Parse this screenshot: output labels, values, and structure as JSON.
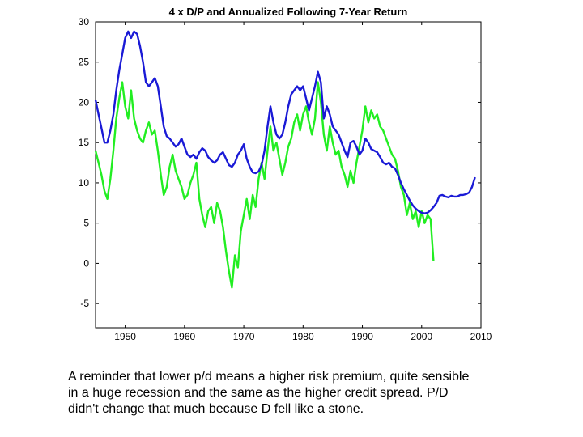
{
  "chart_data": {
    "type": "line",
    "title": "4 x D/P and Annualized Following 7-Year Return",
    "xlabel": "",
    "ylabel": "",
    "xlim": [
      1945,
      2010
    ],
    "ylim": [
      -8,
      30
    ],
    "xticks": [
      1950,
      1960,
      1970,
      1980,
      1990,
      2000,
      2010
    ],
    "yticks": [
      30,
      25,
      20,
      15,
      10,
      5,
      0,
      -5
    ],
    "grid": false,
    "legend": "none",
    "series": [
      {
        "color": "#1a1ad6",
        "points": [
          [
            1945.0,
            20.3
          ],
          [
            1945.5,
            18.5
          ],
          [
            1946.0,
            16.8
          ],
          [
            1946.5,
            15.0
          ],
          [
            1947.0,
            15.0
          ],
          [
            1947.5,
            16.5
          ],
          [
            1948.0,
            18.5
          ],
          [
            1948.5,
            21.5
          ],
          [
            1949.0,
            24.0
          ],
          [
            1949.5,
            26.0
          ],
          [
            1950.0,
            28.0
          ],
          [
            1950.5,
            28.8
          ],
          [
            1951.0,
            28.0
          ],
          [
            1951.5,
            28.8
          ],
          [
            1952.0,
            28.5
          ],
          [
            1952.5,
            27.0
          ],
          [
            1953.0,
            25.0
          ],
          [
            1953.5,
            22.5
          ],
          [
            1954.0,
            22.0
          ],
          [
            1954.5,
            22.5
          ],
          [
            1955.0,
            23.0
          ],
          [
            1955.5,
            22.0
          ],
          [
            1956.0,
            19.5
          ],
          [
            1956.5,
            17.0
          ],
          [
            1957.0,
            15.8
          ],
          [
            1957.5,
            15.5
          ],
          [
            1958.0,
            15.0
          ],
          [
            1958.5,
            14.5
          ],
          [
            1959.0,
            14.8
          ],
          [
            1959.5,
            15.5
          ],
          [
            1960.0,
            14.5
          ],
          [
            1960.5,
            13.5
          ],
          [
            1961.0,
            13.2
          ],
          [
            1961.5,
            13.5
          ],
          [
            1962.0,
            13.0
          ],
          [
            1962.5,
            13.8
          ],
          [
            1963.0,
            14.3
          ],
          [
            1963.5,
            14.0
          ],
          [
            1964.0,
            13.2
          ],
          [
            1964.5,
            12.8
          ],
          [
            1965.0,
            12.5
          ],
          [
            1965.5,
            12.8
          ],
          [
            1966.0,
            13.5
          ],
          [
            1966.5,
            13.8
          ],
          [
            1967.0,
            13.0
          ],
          [
            1967.5,
            12.2
          ],
          [
            1968.0,
            12.0
          ],
          [
            1968.5,
            12.5
          ],
          [
            1969.0,
            13.5
          ],
          [
            1969.5,
            14.0
          ],
          [
            1970.0,
            14.8
          ],
          [
            1970.5,
            13.0
          ],
          [
            1971.0,
            12.0
          ],
          [
            1971.5,
            11.3
          ],
          [
            1972.0,
            11.2
          ],
          [
            1972.5,
            11.4
          ],
          [
            1973.0,
            12.2
          ],
          [
            1973.5,
            14.0
          ],
          [
            1974.0,
            17.0
          ],
          [
            1974.5,
            19.5
          ],
          [
            1975.0,
            17.5
          ],
          [
            1975.5,
            16.0
          ],
          [
            1976.0,
            15.5
          ],
          [
            1976.5,
            16.0
          ],
          [
            1977.0,
            17.5
          ],
          [
            1977.5,
            19.5
          ],
          [
            1978.0,
            21.0
          ],
          [
            1978.5,
            21.5
          ],
          [
            1979.0,
            22.0
          ],
          [
            1979.5,
            21.5
          ],
          [
            1980.0,
            22.0
          ],
          [
            1980.5,
            20.5
          ],
          [
            1981.0,
            19.0
          ],
          [
            1981.5,
            20.5
          ],
          [
            1982.0,
            22.0
          ],
          [
            1982.5,
            23.8
          ],
          [
            1983.0,
            22.5
          ],
          [
            1983.5,
            18.0
          ],
          [
            1984.0,
            19.5
          ],
          [
            1984.5,
            18.5
          ],
          [
            1985.0,
            17.0
          ],
          [
            1985.5,
            16.5
          ],
          [
            1986.0,
            16.0
          ],
          [
            1986.5,
            15.0
          ],
          [
            1987.0,
            14.0
          ],
          [
            1987.5,
            13.2
          ],
          [
            1988.0,
            15.0
          ],
          [
            1988.5,
            15.2
          ],
          [
            1989.0,
            14.5
          ],
          [
            1989.5,
            13.5
          ],
          [
            1990.0,
            14.0
          ],
          [
            1990.5,
            15.5
          ],
          [
            1991.0,
            15.0
          ],
          [
            1991.5,
            14.2
          ],
          [
            1992.0,
            14.0
          ],
          [
            1992.5,
            13.8
          ],
          [
            1993.0,
            13.2
          ],
          [
            1993.5,
            12.5
          ],
          [
            1994.0,
            12.3
          ],
          [
            1994.5,
            12.5
          ],
          [
            1995.0,
            12.0
          ],
          [
            1995.5,
            11.8
          ],
          [
            1996.0,
            11.0
          ],
          [
            1996.5,
            10.0
          ],
          [
            1997.0,
            9.2
          ],
          [
            1997.5,
            8.5
          ],
          [
            1998.0,
            7.8
          ],
          [
            1998.5,
            7.2
          ],
          [
            1999.0,
            6.8
          ],
          [
            1999.5,
            6.5
          ],
          [
            2000.0,
            6.3
          ],
          [
            2000.5,
            6.2
          ],
          [
            2001.0,
            6.3
          ],
          [
            2001.5,
            6.6
          ],
          [
            2002.0,
            7.0
          ],
          [
            2002.5,
            7.5
          ],
          [
            2003.0,
            8.4
          ],
          [
            2003.5,
            8.5
          ],
          [
            2004.0,
            8.3
          ],
          [
            2004.5,
            8.2
          ],
          [
            2005.0,
            8.4
          ],
          [
            2005.5,
            8.3
          ],
          [
            2006.0,
            8.3
          ],
          [
            2006.5,
            8.5
          ],
          [
            2007.0,
            8.5
          ],
          [
            2007.5,
            8.6
          ],
          [
            2008.0,
            8.8
          ],
          [
            2008.5,
            9.5
          ],
          [
            2009.0,
            10.7
          ]
        ]
      },
      {
        "color": "#22ee22",
        "points": [
          [
            1945.0,
            14.0
          ],
          [
            1945.5,
            12.5
          ],
          [
            1946.0,
            11.0
          ],
          [
            1946.5,
            9.0
          ],
          [
            1947.0,
            8.0
          ],
          [
            1947.5,
            10.5
          ],
          [
            1948.0,
            14.0
          ],
          [
            1948.5,
            18.0
          ],
          [
            1949.0,
            20.5
          ],
          [
            1949.5,
            22.5
          ],
          [
            1950.0,
            19.5
          ],
          [
            1950.5,
            18.0
          ],
          [
            1951.0,
            21.5
          ],
          [
            1951.5,
            18.0
          ],
          [
            1952.0,
            16.5
          ],
          [
            1952.5,
            15.5
          ],
          [
            1953.0,
            15.0
          ],
          [
            1953.5,
            16.5
          ],
          [
            1954.0,
            17.5
          ],
          [
            1954.5,
            16.0
          ],
          [
            1955.0,
            16.5
          ],
          [
            1955.5,
            14.0
          ],
          [
            1956.0,
            11.0
          ],
          [
            1956.5,
            8.5
          ],
          [
            1957.0,
            9.5
          ],
          [
            1957.5,
            12.0
          ],
          [
            1958.0,
            13.5
          ],
          [
            1958.5,
            11.5
          ],
          [
            1959.0,
            10.5
          ],
          [
            1959.5,
            9.5
          ],
          [
            1960.0,
            8.0
          ],
          [
            1960.5,
            8.5
          ],
          [
            1961.0,
            10.0
          ],
          [
            1961.5,
            11.0
          ],
          [
            1962.0,
            12.5
          ],
          [
            1962.5,
            8.0
          ],
          [
            1963.0,
            6.0
          ],
          [
            1963.5,
            4.5
          ],
          [
            1964.0,
            6.5
          ],
          [
            1964.5,
            7.0
          ],
          [
            1965.0,
            5.0
          ],
          [
            1965.5,
            7.5
          ],
          [
            1966.0,
            6.5
          ],
          [
            1966.5,
            4.5
          ],
          [
            1967.0,
            1.5
          ],
          [
            1967.5,
            -1.0
          ],
          [
            1968.0,
            -3.0
          ],
          [
            1968.5,
            1.0
          ],
          [
            1969.0,
            -0.5
          ],
          [
            1969.5,
            4.0
          ],
          [
            1970.0,
            6.0
          ],
          [
            1970.5,
            8.0
          ],
          [
            1971.0,
            5.5
          ],
          [
            1971.5,
            8.5
          ],
          [
            1972.0,
            7.0
          ],
          [
            1972.5,
            10.5
          ],
          [
            1973.0,
            12.5
          ],
          [
            1973.5,
            10.5
          ],
          [
            1974.0,
            14.0
          ],
          [
            1974.5,
            17.0
          ],
          [
            1975.0,
            14.0
          ],
          [
            1975.5,
            15.0
          ],
          [
            1976.0,
            13.0
          ],
          [
            1976.5,
            11.0
          ],
          [
            1977.0,
            12.5
          ],
          [
            1977.5,
            14.5
          ],
          [
            1978.0,
            15.5
          ],
          [
            1978.5,
            17.5
          ],
          [
            1979.0,
            18.5
          ],
          [
            1979.5,
            16.5
          ],
          [
            1980.0,
            18.5
          ],
          [
            1980.5,
            19.5
          ],
          [
            1981.0,
            17.5
          ],
          [
            1981.5,
            16.0
          ],
          [
            1982.0,
            18.0
          ],
          [
            1982.5,
            22.5
          ],
          [
            1983.0,
            20.0
          ],
          [
            1983.5,
            16.0
          ],
          [
            1984.0,
            14.0
          ],
          [
            1984.5,
            17.0
          ],
          [
            1985.0,
            15.0
          ],
          [
            1985.5,
            13.5
          ],
          [
            1986.0,
            14.0
          ],
          [
            1986.5,
            12.0
          ],
          [
            1987.0,
            11.0
          ],
          [
            1987.5,
            9.5
          ],
          [
            1988.0,
            11.5
          ],
          [
            1988.5,
            10.0
          ],
          [
            1989.0,
            12.5
          ],
          [
            1989.5,
            14.5
          ],
          [
            1990.0,
            16.5
          ],
          [
            1990.5,
            19.5
          ],
          [
            1991.0,
            17.5
          ],
          [
            1991.5,
            19.0
          ],
          [
            1992.0,
            18.0
          ],
          [
            1992.5,
            18.5
          ],
          [
            1993.0,
            17.0
          ],
          [
            1993.5,
            16.5
          ],
          [
            1994.0,
            15.5
          ],
          [
            1994.5,
            14.5
          ],
          [
            1995.0,
            13.5
          ],
          [
            1995.5,
            13.0
          ],
          [
            1996.0,
            11.5
          ],
          [
            1996.5,
            9.5
          ],
          [
            1997.0,
            8.5
          ],
          [
            1997.5,
            6.0
          ],
          [
            1998.0,
            7.5
          ],
          [
            1998.5,
            5.5
          ],
          [
            1999.0,
            6.5
          ],
          [
            1999.5,
            4.5
          ],
          [
            2000.0,
            6.5
          ],
          [
            2000.5,
            5.0
          ],
          [
            2001.0,
            6.0
          ],
          [
            2001.5,
            5.5
          ],
          [
            2002.0,
            0.3
          ]
        ]
      }
    ]
  },
  "caption": "A reminder that lower p/d means a higher risk premium, quite sensible\nin a huge recession and the same as the higher credit spread. P/D\ndidn't change that much because D fell like a stone."
}
